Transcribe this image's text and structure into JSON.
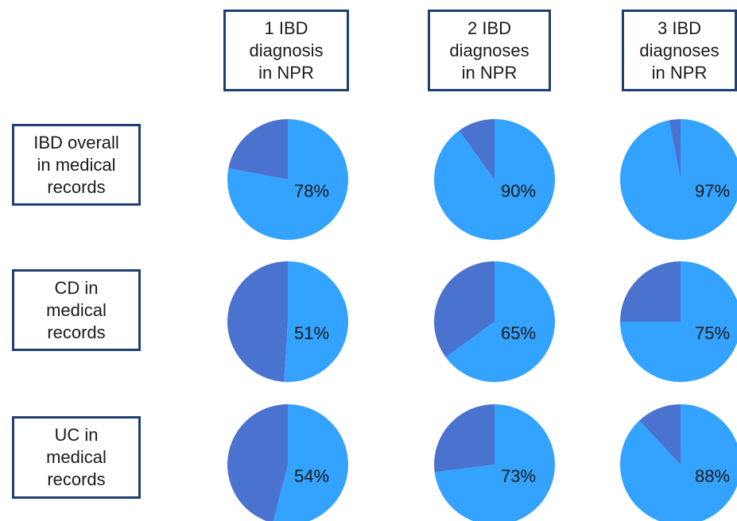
{
  "colors": {
    "main": "#33a3ff",
    "rest": "#4a72cf",
    "border": "#1f3f73",
    "text": "#1a1a1a"
  },
  "columns": [
    {
      "lines": [
        "1 IBD",
        "diagnosis",
        "in NPR"
      ]
    },
    {
      "lines": [
        "2 IBD",
        "diagnoses",
        "in NPR"
      ]
    },
    {
      "lines": [
        "3 IBD",
        "diagnoses",
        "in NPR"
      ]
    }
  ],
  "rows": [
    {
      "lines": [
        "IBD overall",
        "in medical",
        "records"
      ]
    },
    {
      "lines": [
        "CD in",
        "medical",
        "records"
      ]
    },
    {
      "lines": [
        "UC in",
        "medical",
        "records"
      ]
    }
  ],
  "chart_data": {
    "type": "pie",
    "value_unit": "%",
    "grid": [
      [
        78,
        90,
        97
      ],
      [
        51,
        65,
        75
      ],
      [
        54,
        73,
        88
      ]
    ],
    "labels": [
      [
        "78%",
        "90%",
        "97%"
      ],
      [
        "51%",
        "65%",
        "75%"
      ],
      [
        "54%",
        "73%",
        "88%"
      ]
    ]
  }
}
